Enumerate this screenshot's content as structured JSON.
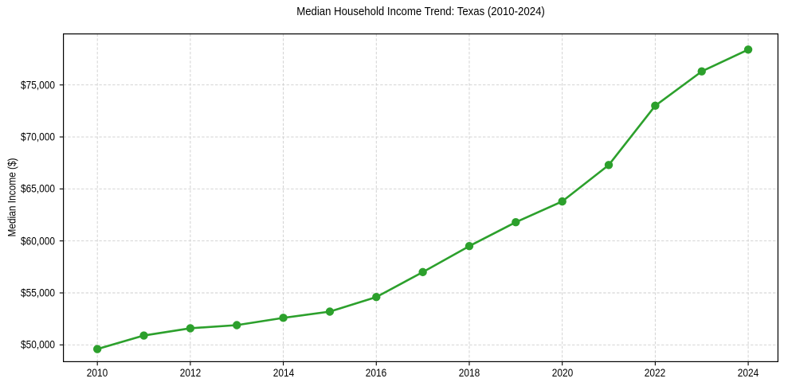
{
  "chart_data": {
    "type": "line",
    "title": "Median Household Income Trend: Texas (2010-2024)",
    "xlabel": "",
    "ylabel": "Median Income ($)",
    "x": [
      2010,
      2011,
      2012,
      2013,
      2014,
      2015,
      2016,
      2017,
      2018,
      2019,
      2020,
      2021,
      2022,
      2023,
      2024
    ],
    "values": [
      49600,
      50900,
      51600,
      51900,
      52600,
      53200,
      54600,
      57000,
      59500,
      61800,
      63800,
      67300,
      73000,
      76300,
      78400
    ],
    "xtick_values": [
      2010,
      2012,
      2014,
      2016,
      2018,
      2020,
      2022,
      2024
    ],
    "xtick_labels": [
      "2010",
      "2012",
      "2014",
      "2016",
      "2018",
      "2020",
      "2022",
      "2024"
    ],
    "ytick_values": [
      50000,
      55000,
      60000,
      65000,
      70000,
      75000
    ],
    "ytick_labels": [
      "$50,000",
      "$55,000",
      "$60,000",
      "$65,000",
      "$70,000",
      "$75,000"
    ],
    "xlim": [
      2009.26,
      2024.65
    ],
    "ylim": [
      48340,
      79954
    ],
    "grid": true,
    "grid_style": "dashed",
    "legend_position": "none",
    "line_color": "#2ca02c",
    "marker": "o",
    "grid_color": "#cdcdcd",
    "spine_color": "#000000",
    "tick_color": "#000000",
    "text_color": "#000000",
    "background": "#ffffff"
  }
}
